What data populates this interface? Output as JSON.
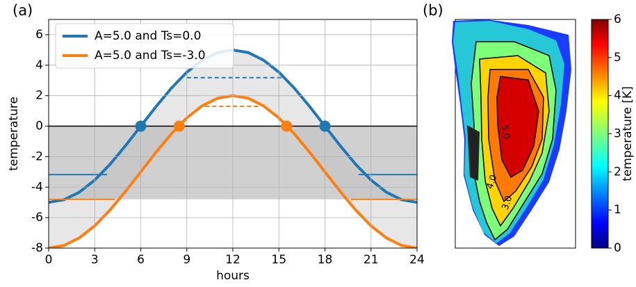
{
  "chart_data": [
    {
      "type": "line",
      "panel_label": "(a)",
      "xlabel": "hours",
      "ylabel": "temperature",
      "xlim": [
        0,
        24
      ],
      "ylim": [
        -8,
        7
      ],
      "xticks": [
        0,
        3,
        6,
        9,
        12,
        15,
        18,
        21,
        24
      ],
      "yticks": [
        -8,
        -6,
        -4,
        -2,
        0,
        2,
        4,
        6
      ],
      "grid": true,
      "legend": "upper left",
      "zero_line": 0,
      "shade_band": [
        -4.8,
        0
      ],
      "x": [
        0,
        1,
        2,
        3,
        4,
        5,
        6,
        7,
        8,
        9,
        10,
        11,
        12,
        13,
        14,
        15,
        16,
        17,
        18,
        19,
        20,
        21,
        22,
        23,
        24
      ],
      "series": [
        {
          "name": "A=5.0 and Ts=0.0",
          "color": "#1f77b4",
          "values": [
            -5,
            -4.83,
            -4.33,
            -3.54,
            -2.5,
            -1.29,
            0,
            1.29,
            2.5,
            3.54,
            4.33,
            4.83,
            5,
            4.83,
            4.33,
            3.54,
            2.5,
            1.29,
            0,
            -1.29,
            -2.5,
            -3.54,
            -4.33,
            -4.83,
            -5
          ],
          "zero_crossings": [
            6,
            18
          ],
          "dashed": {
            "y": 3.18,
            "x": [
              9,
              15.2
            ]
          },
          "level": {
            "y": -3.18,
            "segments": [
              [
                0,
                3.8
              ],
              [
                20.2,
                24
              ]
            ]
          }
        },
        {
          "name": "A=5.0 and Ts=-3.0",
          "color": "#ff7f0e",
          "values": [
            -8,
            -7.83,
            -7.33,
            -6.54,
            -5.5,
            -4.29,
            -3,
            -1.71,
            -0.5,
            0.54,
            1.33,
            1.83,
            2,
            1.83,
            1.33,
            0.54,
            -0.5,
            -1.71,
            -3,
            -4.29,
            -5.5,
            -6.54,
            -7.33,
            -7.83,
            -8
          ],
          "zero_crossings": [
            8.5,
            15.5
          ],
          "dashed": {
            "y": 1.3,
            "x": [
              10.2,
              13.8
            ]
          },
          "level": {
            "y": -4.8,
            "segments": [
              [
                0,
                4.3
              ],
              [
                19.7,
                24
              ]
            ]
          }
        }
      ]
    },
    {
      "type": "colormap",
      "panel_label": "(b)",
      "colorbar_label": "temperature [K]",
      "clim": [
        0,
        6
      ],
      "cticks": [
        0,
        1,
        2,
        3,
        4,
        5,
        6
      ],
      "colormap": "jet",
      "contour_labels": [
        "5.0",
        "4.0",
        "3.0"
      ]
    }
  ]
}
